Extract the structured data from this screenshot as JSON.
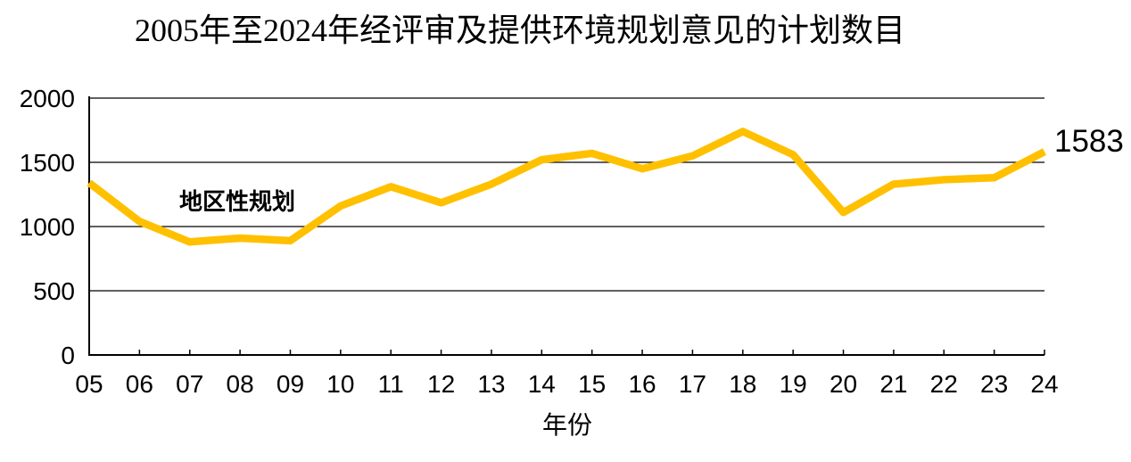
{
  "page": {
    "background": "#ffffff"
  },
  "chart_data": {
    "type": "line",
    "title": "2005年至2024年经评审及提供环境规划意见的计划数目",
    "xlabel": "年份",
    "ylabel": "",
    "categories": [
      "05",
      "06",
      "07",
      "08",
      "09",
      "10",
      "11",
      "12",
      "13",
      "14",
      "15",
      "16",
      "17",
      "18",
      "19",
      "20",
      "21",
      "22",
      "23",
      "24"
    ],
    "series": [
      {
        "name": "地区性规划",
        "color": "#FFC000",
        "values": [
          1340,
          1040,
          880,
          910,
          890,
          1160,
          1310,
          1185,
          1330,
          1520,
          1570,
          1450,
          1550,
          1740,
          1560,
          1110,
          1330,
          1365,
          1380,
          1583
        ]
      }
    ],
    "end_label": "1583",
    "ylim": [
      0,
      2000
    ],
    "yticks": [
      0,
      500,
      1000,
      1500,
      2000
    ],
    "grid": "horizontal gridlines at every 500",
    "legend": "inline text label near series",
    "axis_color": "#000000",
    "gridline_color": "#000000"
  }
}
